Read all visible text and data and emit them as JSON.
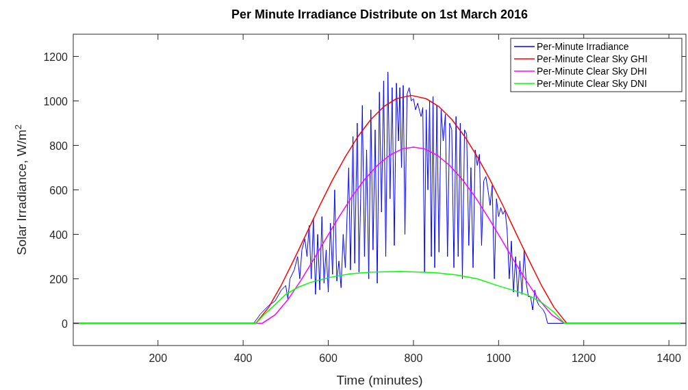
{
  "chart_data": {
    "type": "line",
    "title": "Per Minute Irradiance Distribute on 1st March 2016",
    "xlabel": "Time (minutes)",
    "ylabel": "Solar Irradiance, W/m$^{2}$",
    "xlim": [
      1,
      1440
    ],
    "xticks": [
      200,
      400,
      600,
      800,
      1000,
      1200,
      1400
    ],
    "ylim": [
      -100,
      1300
    ],
    "yticks": [
      0,
      200,
      400,
      600,
      800,
      1000,
      1200
    ],
    "grid": false,
    "legend": "top right",
    "marker": "none",
    "line_style": "solid",
    "series": [
      {
        "name": "Per-Minute Irradiance",
        "color": "#0000ff",
        "x": [
          1,
          425,
          440,
          460,
          475,
          490,
          500,
          505,
          510,
          520,
          528,
          533,
          538,
          545,
          550,
          555,
          560,
          565,
          570,
          575,
          580,
          585,
          590,
          595,
          600,
          605,
          610,
          615,
          620,
          625,
          630,
          635,
          640,
          648,
          652,
          658,
          662,
          668,
          672,
          676,
          680,
          685,
          690,
          695,
          700,
          705,
          710,
          715,
          720,
          725,
          730,
          735,
          740,
          745,
          750,
          755,
          760,
          765,
          768,
          772,
          776,
          780,
          785,
          790,
          795,
          800,
          805,
          810,
          815,
          818,
          822,
          826,
          830,
          834,
          838,
          842,
          846,
          850,
          855,
          860,
          865,
          870,
          875,
          880,
          885,
          890,
          895,
          900,
          905,
          910,
          915,
          920,
          925,
          930,
          935,
          940,
          945,
          950,
          955,
          960,
          965,
          970,
          975,
          980,
          985,
          990,
          995,
          1000,
          1005,
          1010,
          1015,
          1020,
          1025,
          1030,
          1035,
          1040,
          1045,
          1050,
          1055,
          1060,
          1065,
          1070,
          1075,
          1080,
          1085,
          1090,
          1095,
          1100,
          1105,
          1110,
          1115,
          1440
        ],
        "values": [
          0,
          0,
          40,
          80,
          100,
          150,
          170,
          110,
          200,
          240,
          300,
          200,
          330,
          380,
          300,
          440,
          200,
          470,
          130,
          400,
          150,
          480,
          180,
          330,
          140,
          450,
          220,
          600,
          190,
          280,
          160,
          400,
          250,
          700,
          240,
          840,
          270,
          900,
          230,
          560,
          980,
          300,
          780,
          200,
          960,
          330,
          870,
          180,
          1040,
          500,
          1090,
          300,
          1130,
          560,
          1060,
          350,
          1080,
          820,
          1060,
          700,
          1070,
          400,
          1030,
          1060,
          1000,
          1010,
          960,
          990,
          950,
          930,
          970,
          230,
          960,
          600,
          1000,
          300,
          1020,
          250,
          980,
          320,
          960,
          820,
          940,
          300,
          900,
          870,
          250,
          930,
          300,
          900,
          200,
          870,
          850,
          350,
          700,
          250,
          780,
          710,
          760,
          350,
          640,
          660,
          600,
          530,
          620,
          200,
          560,
          480,
          520,
          490,
          510,
          420,
          200,
          370,
          140,
          300,
          120,
          280,
          130,
          330,
          180,
          120,
          120,
          60,
          150,
          100,
          80,
          70,
          60,
          40,
          0,
          0
        ]
      },
      {
        "name": "Per-Minute Clear Sky GHI",
        "color": "#ff0000",
        "x": [
          1,
          430,
          460,
          490,
          520,
          550,
          580,
          610,
          640,
          670,
          700,
          730,
          760,
          795,
          830,
          860,
          890,
          920,
          950,
          980,
          1010,
          1040,
          1070,
          1100,
          1130,
          1160,
          1440
        ],
        "values": [
          0,
          0,
          72,
          173,
          289,
          409,
          530,
          645,
          749,
          841,
          917,
          974,
          1010,
          1025,
          1010,
          974,
          917,
          841,
          749,
          645,
          530,
          409,
          289,
          173,
          72,
          0,
          0
        ]
      },
      {
        "name": "Per-Minute Clear Sky DHI",
        "color": "#ff00ff",
        "x": [
          1,
          445,
          475,
          505,
          535,
          565,
          595,
          625,
          655,
          685,
          715,
          745,
          775,
          800,
          825,
          855,
          885,
          915,
          945,
          975,
          1005,
          1035,
          1065,
          1095,
          1125,
          1155,
          1440
        ],
        "values": [
          0,
          0,
          38,
          106,
          191,
          285,
          383,
          478,
          568,
          646,
          710,
          757,
          785,
          792,
          785,
          757,
          710,
          646,
          568,
          478,
          383,
          285,
          191,
          106,
          38,
          0,
          0
        ]
      },
      {
        "name": "Per-Minute Clear Sky DNI",
        "color": "#00ff00",
        "x": [
          1,
          430,
          450,
          470,
          500,
          530,
          560,
          600,
          650,
          700,
          770,
          850,
          900,
          950,
          1000,
          1040,
          1070,
          1100,
          1130,
          1155,
          1440
        ],
        "values": [
          0,
          0,
          40,
          75,
          130,
          163,
          185,
          205,
          222,
          230,
          233,
          228,
          218,
          200,
          168,
          145,
          125,
          95,
          50,
          0,
          0
        ]
      }
    ]
  }
}
